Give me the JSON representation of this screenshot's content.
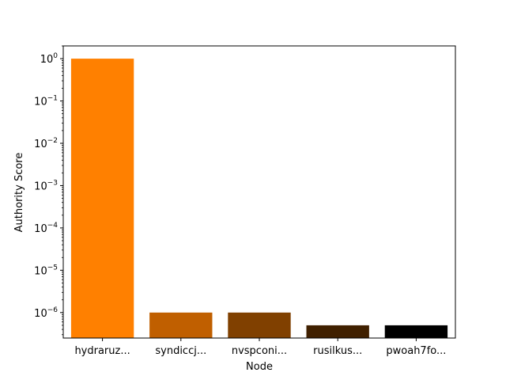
{
  "chart_data": {
    "type": "bar",
    "title": "",
    "xlabel": "Node",
    "ylabel": "Authority Score",
    "yscale": "log",
    "ylim": [
      2.5e-07,
      2.0
    ],
    "categories": [
      "hydraruz...",
      "syndiccj...",
      "nvspconi...",
      "rusilkus...",
      "pwoah7fo..."
    ],
    "values": [
      1.0,
      1e-06,
      1e-06,
      5e-07,
      5e-07
    ],
    "colors": [
      "#ff8000",
      "#c05f00",
      "#804000",
      "#402000",
      "#000000"
    ],
    "y_ticks": [
      {
        "value": 1,
        "base": "10",
        "exp": "0"
      },
      {
        "value": 0.1,
        "base": "10",
        "exp": "−1"
      },
      {
        "value": 0.01,
        "base": "10",
        "exp": "−2"
      },
      {
        "value": 0.001,
        "base": "10",
        "exp": "−3"
      },
      {
        "value": 0.0001,
        "base": "10",
        "exp": "−4"
      },
      {
        "value": 1e-05,
        "base": "10",
        "exp": "−5"
      },
      {
        "value": 1e-06,
        "base": "10",
        "exp": "−6"
      }
    ],
    "grid": false,
    "legend": "none"
  }
}
